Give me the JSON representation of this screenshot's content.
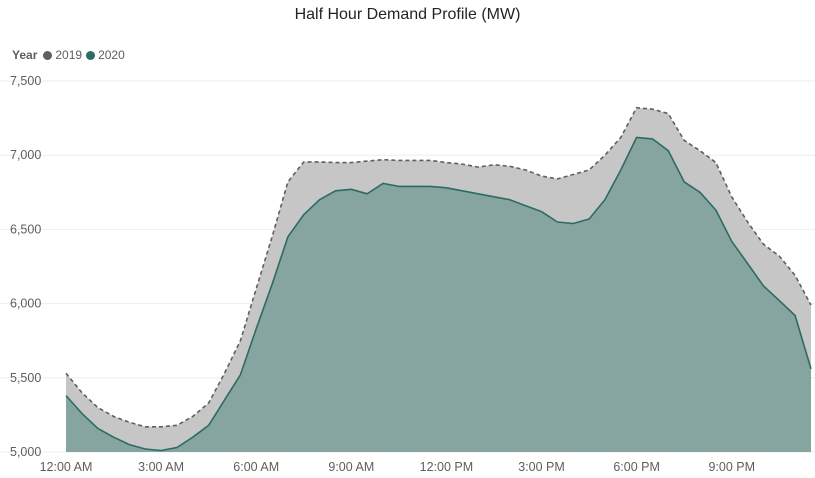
{
  "chart_data": {
    "type": "area",
    "title": "Half Hour Demand Profile (MW)",
    "legend": {
      "title": "Year",
      "placement": "top-left"
    },
    "xlabel": "",
    "ylabel": "",
    "ylim": [
      5000,
      7500
    ],
    "y_ticks": [
      "5,000",
      "5,500",
      "6,000",
      "6,500",
      "7,000",
      "7,500"
    ],
    "y_tick_values": [
      5000,
      5500,
      6000,
      6500,
      7000,
      7500
    ],
    "x_ticks": [
      "12:00 AM",
      "3:00 AM",
      "6:00 AM",
      "9:00 AM",
      "12:00 PM",
      "3:00 PM",
      "6:00 PM",
      "9:00 PM"
    ],
    "x_tick_hours": [
      0,
      3,
      6,
      9,
      12,
      15,
      18,
      21
    ],
    "x_hours": [
      0,
      0.5,
      1,
      1.5,
      2,
      2.5,
      3,
      3.5,
      4,
      4.5,
      5,
      5.5,
      6,
      6.5,
      7,
      7.5,
      8,
      8.5,
      9,
      9.5,
      10,
      10.5,
      11,
      11.5,
      12,
      12.5,
      13,
      13.5,
      14,
      14.5,
      15,
      15.5,
      16,
      16.5,
      17,
      17.5,
      18,
      18.5,
      19,
      19.5,
      20,
      20.5,
      21,
      21.5,
      22,
      22.5,
      23,
      23.5
    ],
    "grid": true,
    "series": [
      {
        "name": "2019",
        "color": "#5f5f5f",
        "fill": "#c6c6c6",
        "line_style": "dashed",
        "values": [
          5530,
          5400,
          5300,
          5240,
          5200,
          5170,
          5170,
          5180,
          5240,
          5330,
          5530,
          5750,
          6100,
          6450,
          6820,
          6955,
          6955,
          6950,
          6950,
          6960,
          6970,
          6965,
          6965,
          6965,
          6950,
          6940,
          6920,
          6935,
          6925,
          6900,
          6860,
          6840,
          6870,
          6900,
          7000,
          7120,
          7320,
          7310,
          7280,
          7100,
          7030,
          6950,
          6720,
          6550,
          6400,
          6320,
          6190,
          5990
        ]
      },
      {
        "name": "2020",
        "color": "#2d6b63",
        "fill": "#86a5a0",
        "line_style": "solid",
        "values": [
          5380,
          5260,
          5160,
          5100,
          5050,
          5020,
          5010,
          5030,
          5100,
          5180,
          5350,
          5520,
          5830,
          6130,
          6450,
          6600,
          6700,
          6760,
          6770,
          6740,
          6810,
          6790,
          6790,
          6790,
          6780,
          6760,
          6740,
          6720,
          6700,
          6660,
          6620,
          6550,
          6540,
          6570,
          6700,
          6900,
          7120,
          7110,
          7030,
          6820,
          6750,
          6630,
          6420,
          6270,
          6120,
          6020,
          5920,
          5560
        ]
      }
    ]
  }
}
